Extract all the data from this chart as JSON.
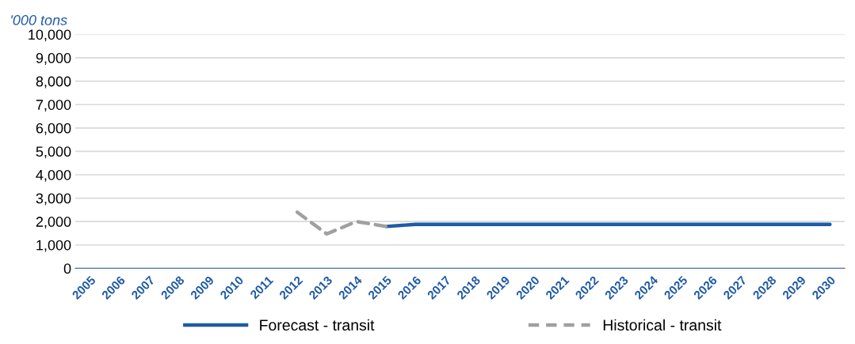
{
  "chart_data": {
    "type": "line",
    "ylabel": "'000 tons",
    "categories": [
      "2005",
      "2006",
      "2007",
      "2008",
      "2009",
      "2010",
      "2011",
      "2012",
      "2013",
      "2014",
      "2015",
      "2016",
      "2017",
      "2018",
      "2019",
      "2020",
      "2021",
      "2022",
      "2023",
      "2024",
      "2025",
      "2026",
      "2027",
      "2028",
      "2029",
      "2030"
    ],
    "series": [
      {
        "name": "Forecast - transit",
        "color": "#1f5aa6",
        "line_style": "solid",
        "values": [
          null,
          null,
          null,
          null,
          null,
          null,
          null,
          null,
          null,
          null,
          1790,
          1880,
          1880,
          1880,
          1880,
          1880,
          1880,
          1880,
          1880,
          1880,
          1880,
          1880,
          1880,
          1880,
          1880,
          1880
        ]
      },
      {
        "name": "Historical - transit",
        "color": "#a0a0a0",
        "line_style": "dashed",
        "values": [
          null,
          null,
          null,
          null,
          null,
          null,
          null,
          2400,
          1470,
          2000,
          1790,
          null,
          null,
          null,
          null,
          null,
          null,
          null,
          null,
          null,
          null,
          null,
          null,
          null,
          null,
          null
        ]
      }
    ],
    "ylim": [
      0,
      10000
    ],
    "yticks": [
      {
        "value": 0,
        "label": "0"
      },
      {
        "value": 1000,
        "label": "1,000"
      },
      {
        "value": 2000,
        "label": "2,000"
      },
      {
        "value": 3000,
        "label": "3,000"
      },
      {
        "value": 4000,
        "label": "4,000"
      },
      {
        "value": 5000,
        "label": "5,000"
      },
      {
        "value": 6000,
        "label": "6,000"
      },
      {
        "value": 7000,
        "label": "7,000"
      },
      {
        "value": 8000,
        "label": "8,000"
      },
      {
        "value": 9000,
        "label": "9,000"
      },
      {
        "value": 10000,
        "label": "10,000"
      }
    ],
    "grid": "y",
    "legend": "bottom",
    "marker": "none"
  }
}
